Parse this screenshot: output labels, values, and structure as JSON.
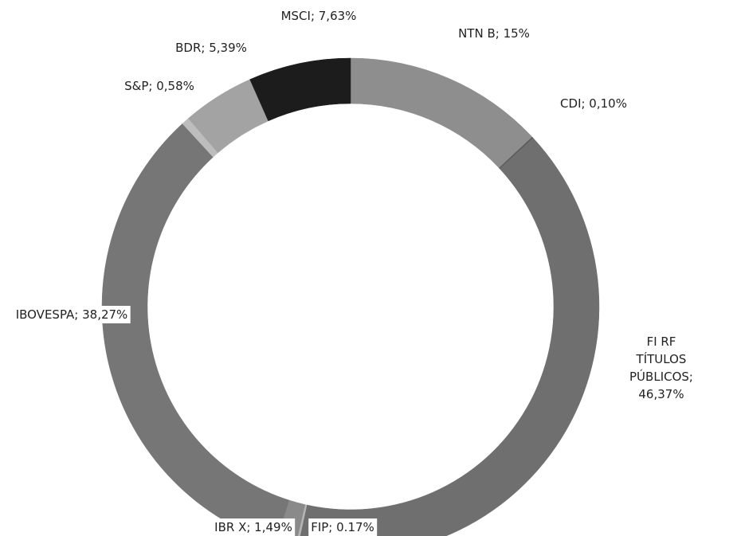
{
  "chart_data": {
    "type": "pie",
    "values": [
      15,
      0.1,
      46.37,
      0.17,
      1.49,
      38.27,
      0.58,
      5.39,
      7.63
    ],
    "value_labels": [
      "NTN B; 15%",
      "CDI; 0,10%",
      "FI RF TÍTULOS\nPÚBLICOS; 46,37%",
      "FIP; 0.17%",
      "IBR X; 1,49%",
      "IBOVESPA; 38,27%",
      "S&P; 0,58%",
      "BDR; 5,39%",
      "MSCI; 7,63%"
    ],
    "colors": [
      "#8e8e8e",
      "#5a5a5a",
      "#6f6f6f",
      "#b5b5b5",
      "#8a8a8a",
      "#767676",
      "#bdbdbd",
      "#a3a3a3",
      "#1c1c1c"
    ]
  }
}
